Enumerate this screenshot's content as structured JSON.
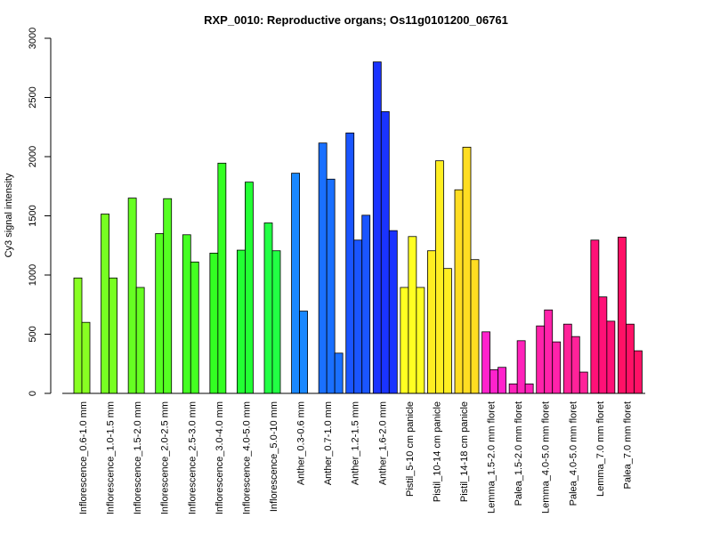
{
  "chart_data": {
    "type": "bar",
    "title": "RXP_0010: Reproductive organs; Os11g0101200_06761",
    "ylabel": "Cy3 signal intensity",
    "xlabel": "",
    "ylim": [
      0,
      3000
    ],
    "yticks": [
      0,
      500,
      1000,
      1500,
      2000,
      2500,
      3000
    ],
    "groups": [
      {
        "label": "Inflorescence_0.6-1.0 mm",
        "color": "#88ff22",
        "values": [
          975,
          600
        ]
      },
      {
        "label": "Inflorescence_1.0-1.5 mm",
        "color": "#77ff22",
        "values": [
          1515,
          975
        ]
      },
      {
        "label": "Inflorescence_1.5-2.0 mm",
        "color": "#66ff22",
        "values": [
          1650,
          895
        ]
      },
      {
        "label": "Inflorescence_2.0-2.5 mm",
        "color": "#55ff22",
        "values": [
          1350,
          1645
        ]
      },
      {
        "label": "Inflorescence_2.5-3.0 mm",
        "color": "#44ff22",
        "values": [
          1340,
          1110
        ]
      },
      {
        "label": "Inflorescence_3.0-4.0 mm",
        "color": "#33ff22",
        "values": [
          1185,
          1945
        ]
      },
      {
        "label": "Inflorescence_4.0-5.0 mm",
        "color": "#22ff33",
        "values": [
          1210,
          1785
        ]
      },
      {
        "label": "Inflorescence_5.0-10 mm",
        "color": "#22ff44",
        "values": [
          1440,
          1205
        ]
      },
      {
        "label": "Anther_0.3-0.6 mm",
        "color": "#1a88ff",
        "values": [
          1860,
          695
        ]
      },
      {
        "label": "Anther_0.7-1.0 mm",
        "color": "#1a70ff",
        "values": [
          2115,
          1810,
          340
        ]
      },
      {
        "label": "Anther_1.2-1.5 mm",
        "color": "#1a55ff",
        "values": [
          2200,
          1295,
          1505
        ]
      },
      {
        "label": "Anther_1.6-2.0 mm",
        "color": "#1a33ff",
        "values": [
          2800,
          2380,
          1375
        ]
      },
      {
        "label": "Pistil_5-10 cm panicle",
        "color": "#ffff22",
        "values": [
          895,
          1325,
          895
        ]
      },
      {
        "label": "Pistil_10-14 cm panicle",
        "color": "#ffee22",
        "values": [
          1205,
          1965,
          1055
        ]
      },
      {
        "label": "Pistil_14-18 cm panicle",
        "color": "#ffdd22",
        "values": [
          1720,
          2080,
          1130
        ]
      },
      {
        "label": "Lemma_1.5-2.0 mm floret",
        "color": "#ff22cc",
        "values": [
          520,
          200,
          220
        ]
      },
      {
        "label": "Palea_1.5-2.0 mm floret",
        "color": "#ff22bb",
        "values": [
          80,
          445,
          80
        ]
      },
      {
        "label": "Lemma_4.0-5.0 mm floret",
        "color": "#ff22aa",
        "values": [
          570,
          705,
          435
        ]
      },
      {
        "label": "Palea_4.0-5.0 mm floret",
        "color": "#ff2299",
        "values": [
          585,
          480,
          180
        ]
      },
      {
        "label": "Lemma_7.0 mm floret",
        "color": "#ff1177",
        "values": [
          1295,
          815,
          610
        ]
      },
      {
        "label": "Palea_7.0 mm floret",
        "color": "#ff1166",
        "values": [
          1320,
          585,
          360
        ]
      }
    ]
  }
}
